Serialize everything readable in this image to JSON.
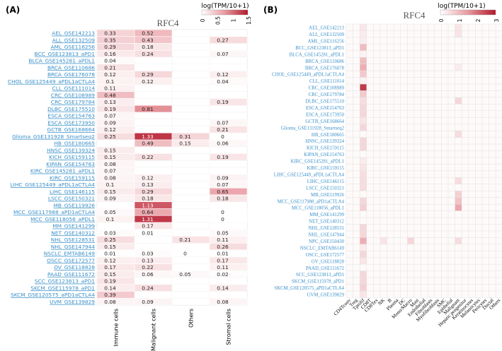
{
  "chart_data": [
    {
      "panel": "(A)",
      "type": "heatmap",
      "title": "RFC4",
      "legend_title": "log(TPM/10+1)",
      "legend_ticks": [
        "0",
        "0.5",
        "1",
        "1.5"
      ],
      "colorscale": {
        "min": 0,
        "max": 1.5,
        "low": "#ffffff",
        "mid": "#e89aa0",
        "high": "#b2182b"
      },
      "columns": [
        "Immune cells",
        "Malignant cells",
        "Others",
        "Stromal cells"
      ],
      "rows": [
        "AEL_GSE142213",
        "ALL_GSE132509",
        "AML_GSE116256",
        "BCC_GSE123813_aPD1",
        "BLCA_GSE145281_aPDL1",
        "BRCA_GSE110686",
        "BRCA_GSE176078",
        "CHOL_GSE125449_aPDL1aCTLA4",
        "CLL_GSE111014",
        "CRC_GSE108989",
        "CRC_GSE179784",
        "DLBC_GSE175510",
        "ESCA_GSE154763",
        "ESCA_GSE173950",
        "GCTB_GSE168664",
        "Glioma_GSE131928_Smartseq2",
        "HB_GSE180665",
        "HNSC_GSE139324",
        "KICH_GSE159115",
        "KIPAN_GSE154763",
        "KIRC_GSE145281_aPDL1",
        "KIRC_GSE159115",
        "LIHC_GSE125449_aPDL1aCTLA4",
        "LIHC_GSE146115",
        "LSCC_GSE150321",
        "MB_GSE119926",
        "MCC_GSE117988_aPD1aCTLA4",
        "MCC_GSE118056_aPDL1",
        "MM_GSE141299",
        "NET_GSE140312",
        "NHL_GSE128531",
        "NHL_GSE147944",
        "NSCLC_EMTAB6149",
        "OSCC_GSE172577",
        "OV_GSE118828",
        "PAAD_GSE111672",
        "SCC_GSE123813_aPD1",
        "SKCM_GSE115978_aPD1",
        "SKCM_GSE120575_aPD1aCTLA4",
        "UVM_GSE139829"
      ],
      "values": [
        [
          0.33,
          0.52,
          null,
          null
        ],
        [
          0.35,
          0.43,
          null,
          0.27
        ],
        [
          0.29,
          0.18,
          null,
          null
        ],
        [
          0.16,
          0.24,
          null,
          0.07
        ],
        [
          0.04,
          null,
          null,
          null
        ],
        [
          0.21,
          null,
          null,
          null
        ],
        [
          0.12,
          0.29,
          null,
          0.12
        ],
        [
          0.1,
          0.12,
          null,
          0.04
        ],
        [
          0.11,
          null,
          null,
          null
        ],
        [
          0.48,
          null,
          null,
          null
        ],
        [
          0.13,
          null,
          null,
          0.19
        ],
        [
          0.19,
          0.81,
          null,
          null
        ],
        [
          0.07,
          null,
          null,
          null
        ],
        [
          0.09,
          null,
          null,
          0.07
        ],
        [
          0.12,
          null,
          null,
          0.21
        ],
        [
          0.25,
          1.33,
          0.31,
          0
        ],
        [
          null,
          0.49,
          0.15,
          0.06
        ],
        [
          0.15,
          null,
          null,
          null
        ],
        [
          0.15,
          0.22,
          null,
          0.19
        ],
        [
          0.08,
          null,
          null,
          null
        ],
        [
          0.07,
          null,
          null,
          null
        ],
        [
          0.08,
          0.12,
          null,
          0.09
        ],
        [
          0.1,
          0.13,
          null,
          0.07
        ],
        [
          0.15,
          0.29,
          null,
          0.65
        ],
        [
          0.09,
          0.18,
          null,
          0.18
        ],
        [
          null,
          1.13,
          null,
          null
        ],
        [
          0.05,
          0.64,
          null,
          0
        ],
        [
          0.1,
          1.31,
          null,
          0
        ],
        [
          null,
          0.17,
          null,
          null
        ],
        [
          0.03,
          0.01,
          null,
          0.05
        ],
        [
          0.25,
          null,
          0.21,
          0.11
        ],
        [
          0.15,
          null,
          null,
          0.26
        ],
        [
          0.01,
          0.03,
          0,
          0.01
        ],
        [
          0.12,
          0.13,
          null,
          0.17
        ],
        [
          0.17,
          0.22,
          null,
          0.11
        ],
        [
          0.15,
          0.06,
          0.05,
          0.02
        ],
        [
          0.19,
          null,
          null,
          null
        ],
        [
          0.14,
          0.24,
          null,
          0.14
        ],
        [
          0.39,
          null,
          null,
          null
        ],
        [
          0.08,
          0.09,
          null,
          0.08
        ]
      ]
    },
    {
      "panel": "(B)",
      "type": "heatmap",
      "title": "RFC4",
      "legend_title": "log(TPM/10+1)",
      "legend_ticks": [
        "0",
        "1",
        "2",
        "3"
      ],
      "colorscale": {
        "min": 0,
        "max": 3,
        "low": "#ffffff",
        "mid": "#e89aa0",
        "high": "#b2182b"
      },
      "columns": [
        "CD4Tconv",
        "Treg",
        "Tprolif",
        "CD8T",
        "CD8Tex",
        "NK",
        "B",
        "Plasma",
        "DC",
        "Mono/Macro",
        "Mast",
        "Endothelial",
        "Fibroblasts",
        "Myofibroblasts",
        "SMC",
        "Epithelial",
        "Malignant",
        "Hepatic progenitor",
        "Keratinocytes",
        "Melanocytes",
        "Pericytes",
        "Ductal",
        "Others"
      ],
      "rows": [
        "AEL_GSE142213",
        "ALL_GSE132509",
        "AML_GSE116256",
        "BCC_GSE123813_aPD1",
        "BLCA_GSE145281_aPDL1",
        "BRCA_GSE110686",
        "BRCA_GSE176078",
        "CHOL_GSE125449_aPDL1aCTLA4",
        "CLL_GSE111014",
        "CRC_GSE108989",
        "CRC_GSE179784",
        "DLBC_GSE175510",
        "ESCA_GSE154763",
        "ESCA_GSE173950",
        "GCTB_GSE168664",
        "Glioma_GSE131928_Smartseq2",
        "HB_GSE180665",
        "HNSC_GSE139324",
        "KICH_GSE159115",
        "KIPAN_GSE154763",
        "KIRC_GSE145281_aPDL1",
        "KIRC_GSE159115",
        "LIHC_GSE125449_aPDL1aCTLA4",
        "LIHC_GSE146115",
        "LSCC_GSE150321",
        "MB_GSE119926",
        "MCC_GSE117988_aPD1aCTLA4",
        "MCC_GSE118056_aPDL1",
        "MM_GSE141299",
        "NET_GSE140312",
        "NHL_GSE128531",
        "NHL_GSE147944",
        "NPC_GSE150430",
        "NSCLC_EMTAB6149",
        "OSCC_GSE172577",
        "OV_GSE118828",
        "PAAD_GSE111672",
        "SCC_GSE123813_aPD1",
        "SKCM_GSE115978_aPD1",
        "SKCM_GSE120575_aPD1aCTLA4",
        "UVM_GSE139829"
      ],
      "highlights": [
        {
          "row": 0,
          "col": 2,
          "value": 0.35
        },
        {
          "row": 1,
          "col": 2,
          "value": 0.3
        },
        {
          "row": 2,
          "col": 2,
          "value": 0.25
        },
        {
          "row": 3,
          "col": 2,
          "value": 1.0
        },
        {
          "row": 4,
          "col": 2,
          "value": 0.2
        },
        {
          "row": 5,
          "col": 2,
          "value": 1.0
        },
        {
          "row": 6,
          "col": 2,
          "value": 1.2
        },
        {
          "row": 7,
          "col": 2,
          "value": 0.8
        },
        {
          "row": 8,
          "col": 2,
          "value": 0.2
        },
        {
          "row": 9,
          "col": 2,
          "value": 2.6
        },
        {
          "row": 10,
          "col": 2,
          "value": 0.8
        },
        {
          "row": 11,
          "col": 2,
          "value": 0.5
        },
        {
          "row": 12,
          "col": 2,
          "value": 0.6
        },
        {
          "row": 13,
          "col": 2,
          "value": 0.6
        },
        {
          "row": 14,
          "col": 2,
          "value": 0.4
        },
        {
          "row": 15,
          "col": 2,
          "value": 0.6
        },
        {
          "row": 17,
          "col": 2,
          "value": 0.6
        },
        {
          "row": 18,
          "col": 2,
          "value": 0.6
        },
        {
          "row": 20,
          "col": 2,
          "value": 0.3
        },
        {
          "row": 21,
          "col": 2,
          "value": 0.4
        },
        {
          "row": 22,
          "col": 2,
          "value": 0.5
        },
        {
          "row": 23,
          "col": 2,
          "value": 0.5
        },
        {
          "row": 24,
          "col": 2,
          "value": 0.5
        },
        {
          "row": 26,
          "col": 2,
          "value": 0.6
        },
        {
          "row": 27,
          "col": 2,
          "value": 0.7
        },
        {
          "row": 30,
          "col": 2,
          "value": 0.6
        },
        {
          "row": 31,
          "col": 2,
          "value": 0.6
        },
        {
          "row": 32,
          "col": 2,
          "value": 1.2
        },
        {
          "row": 33,
          "col": 2,
          "value": 0.3
        },
        {
          "row": 34,
          "col": 2,
          "value": 0.6
        },
        {
          "row": 35,
          "col": 2,
          "value": 0.4
        },
        {
          "row": 37,
          "col": 2,
          "value": 0.6
        },
        {
          "row": 38,
          "col": 2,
          "value": 0.6
        },
        {
          "row": 39,
          "col": 2,
          "value": 0.7
        },
        {
          "row": 40,
          "col": 2,
          "value": 0.4
        },
        {
          "row": 25,
          "col": 16,
          "value": 0.7
        },
        {
          "row": 26,
          "col": 16,
          "value": 0.9
        },
        {
          "row": 27,
          "col": 16,
          "value": 1.3
        },
        {
          "row": 23,
          "col": 16,
          "value": 0.5
        },
        {
          "row": 16,
          "col": 16,
          "value": 0.5
        },
        {
          "row": 32,
          "col": 9,
          "value": 0.6
        },
        {
          "row": 32,
          "col": 5,
          "value": 0.4
        },
        {
          "row": 32,
          "col": 16,
          "value": 0.5
        },
        {
          "row": 11,
          "col": 16,
          "value": 0.6
        },
        {
          "row": 6,
          "col": 16,
          "value": 0.3
        },
        {
          "row": 0,
          "col": 16,
          "value": 0.4
        },
        {
          "row": 1,
          "col": 16,
          "value": 0.4
        }
      ],
      "cell_value_elsewhere": 0.08
    }
  ]
}
